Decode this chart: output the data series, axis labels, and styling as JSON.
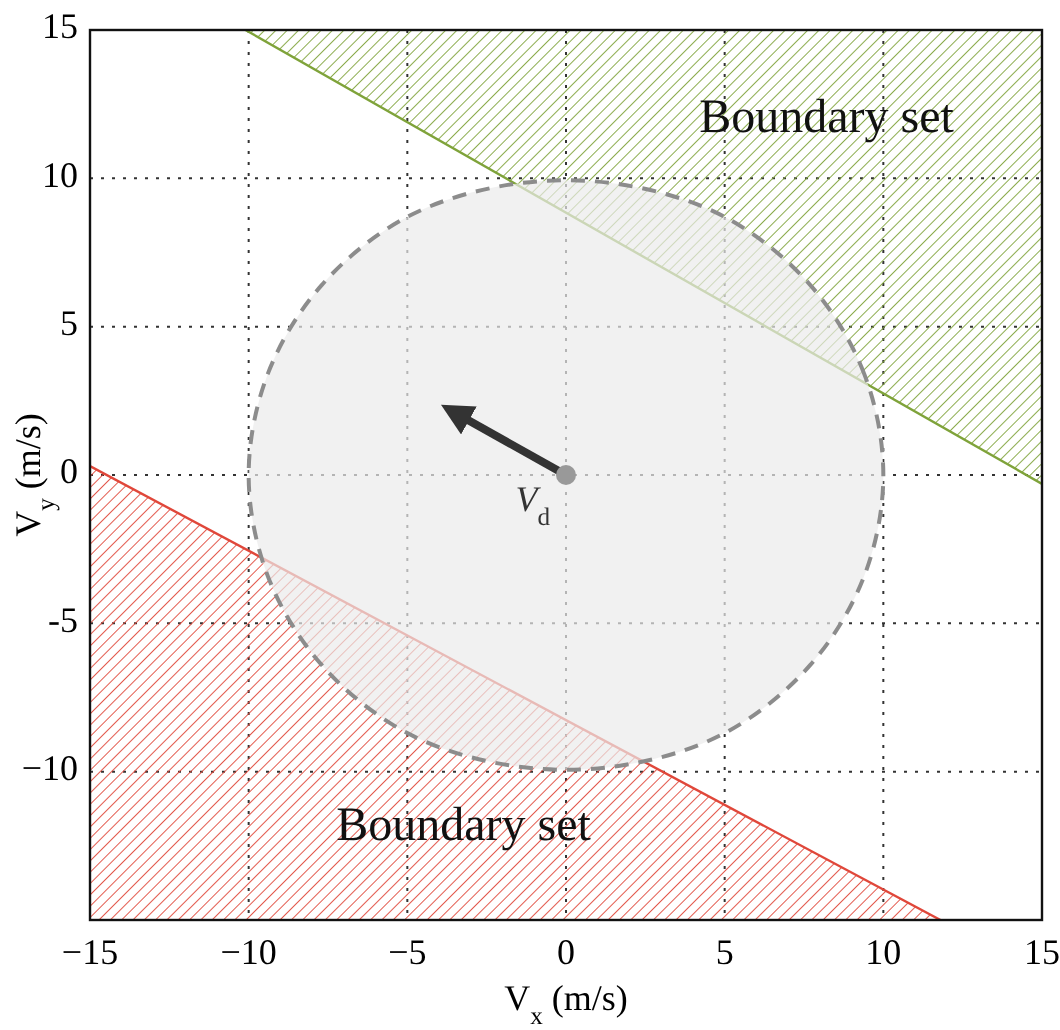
{
  "chart_data": {
    "type": "area",
    "xlabel": "V$_{x}$ (m/s)",
    "ylabel": "V$_{y}$ (m/s)",
    "xlim": [
      -15,
      15
    ],
    "ylim": [
      -15,
      15
    ],
    "xticks": [
      {
        "value": -15,
        "label": "−15"
      },
      {
        "value": -10,
        "label": "−10"
      },
      {
        "value": -5,
        "label": "−5"
      },
      0,
      5,
      10,
      15
    ],
    "yticks": [
      {
        "value": -15,
        "label": null
      },
      {
        "value": -10,
        "label": "−10"
      },
      {
        "value": -5,
        "label": "-5"
      },
      0,
      5,
      10,
      15
    ],
    "grid": true,
    "series": [
      {
        "color": "#7fa33a",
        "x": [
          -10.1,
          15,
          15
        ],
        "values": [
          15,
          -0.3,
          15
        ]
      },
      {
        "color": "#e0473a",
        "x": [
          -15,
          11.8,
          -15
        ],
        "values": [
          0.3,
          -15,
          -15
        ]
      },
      {
        "color": "#8c8c8c",
        "line_style": "dashed",
        "x": [
          10,
          9.4,
          7.7,
          5,
          1.7,
          -1.7,
          -5,
          -7.7,
          -9.4,
          -10,
          -9.4,
          -7.7,
          -5,
          -1.7,
          1.7,
          5,
          7.7,
          9.4
        ],
        "values": [
          0,
          3.4,
          6.4,
          8.7,
          9.8,
          9.8,
          8.7,
          6.4,
          3.4,
          0,
          -3.4,
          -6.4,
          -8.7,
          -9.8,
          -9.8,
          -8.7,
          -6.4,
          -3.4
        ]
      },
      {
        "type": "line",
        "color": "#333333",
        "x": [
          0,
          -3.5
        ],
        "values": [
          0,
          2.1
        ]
      },
      {
        "type": "scatter",
        "name": "V$_{d}$",
        "color": "#999999",
        "marker": "circle",
        "x": [
          0
        ],
        "values": [
          0
        ]
      }
    ],
    "annotations": [
      "Boundary set",
      "Boundary set"
    ]
  }
}
